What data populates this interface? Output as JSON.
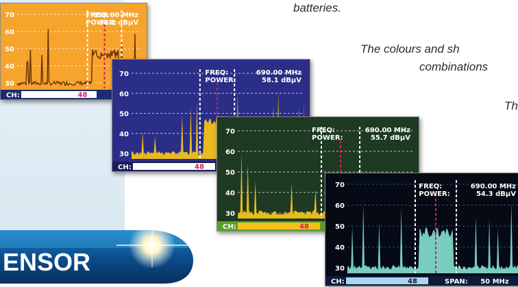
{
  "captions": {
    "line1": "batteries.",
    "line2": "The colours and sh",
    "line3": "combinations",
    "line4": "Th"
  },
  "logo": {
    "text": "ENSOR"
  },
  "screens": [
    {
      "id": "orange",
      "theme": {
        "bg": "#f6a42c",
        "fill": "#8a4a10",
        "stroke": "#6b2f00",
        "text": "#ffffff",
        "grid": "#ffffff",
        "chbar": "#1c2b73"
      },
      "y_ticks": [
        "70",
        "60",
        "50",
        "40",
        "30"
      ],
      "freq_label": "FREQ:",
      "freq_value": "690.00 MHz",
      "power_label": "POWER:",
      "power_value": "58.2 dBµV",
      "ch_label": "CH:",
      "ch_value": "48",
      "chart_data": {
        "type": "line",
        "ylim": [
          25,
          75
        ],
        "channel": "48"
      }
    },
    {
      "id": "blue",
      "theme": {
        "bg": "#2b2e86",
        "fill": "#f2c21a",
        "stroke": "#f2c21a",
        "text": "#ffffff",
        "grid": "#ffffff",
        "chbar": "#1a1d5a"
      },
      "y_ticks": [
        "70",
        "60",
        "50",
        "40",
        "30"
      ],
      "freq_label": "FREQ:",
      "freq_value": "690.00 MHz",
      "power_label": "POWER:",
      "power_value": "58.1 dBµV",
      "ch_label": "CH:",
      "ch_value": "48",
      "chart_data": {
        "type": "area",
        "ylim": [
          25,
          75
        ],
        "channel": "48"
      }
    },
    {
      "id": "green",
      "theme": {
        "bg": "#1e3a22",
        "fill": "#f2c21a",
        "stroke": "#f2c21a",
        "text": "#ffffff",
        "grid": "#ffffff",
        "chbar": "#5aa02c"
      },
      "y_ticks": [
        "70",
        "60",
        "50",
        "40",
        "30"
      ],
      "freq_label": "FREQ:",
      "freq_value": "690.00 MHz",
      "power_label": "POWER:",
      "power_value": "55.7 dBµV",
      "ch_label": "CH:",
      "ch_value": "48",
      "chart_data": {
        "type": "area",
        "ylim": [
          25,
          75
        ],
        "channel": "48"
      }
    },
    {
      "id": "black",
      "theme": {
        "bg": "#050a14",
        "fill": "#7fd8c8",
        "stroke": "#a8f0e0",
        "text": "#ffffff",
        "grid": "#2e6ac8",
        "chbar": "#0d1a3a"
      },
      "y_ticks": [
        "70",
        "60",
        "50",
        "40",
        "30"
      ],
      "freq_label": "FREQ:",
      "freq_value": "690.00 MHz",
      "power_label": "POWER:",
      "power_value": "54.3 dBµV",
      "ch_label": "CH:",
      "ch_value": "48",
      "span_label": "SPAN:",
      "span_value": "50 MHz",
      "chart_data": {
        "type": "area",
        "ylim": [
          25,
          75
        ],
        "channel": "48",
        "span_mhz": 50
      }
    }
  ]
}
